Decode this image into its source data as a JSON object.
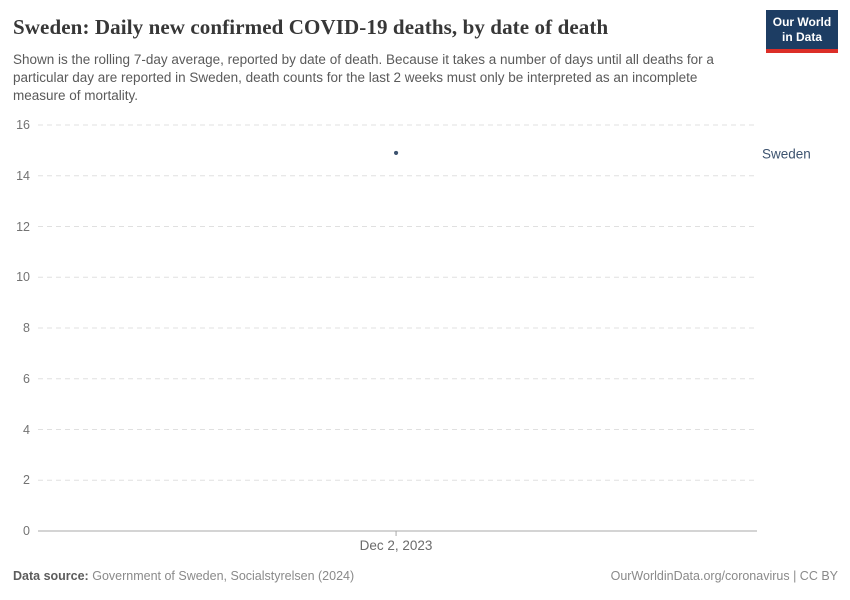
{
  "header": {
    "title": "Sweden: Daily new confirmed COVID-19 deaths, by date of death",
    "subtitle": "Shown is the rolling 7-day average, reported by date of death. Because it takes a number of days until all deaths for a particular day are reported in Sweden, death counts for the last 2 weeks must only be interpreted as an incomplete measure of mortality.",
    "logo": {
      "line1": "Our World",
      "line2": "in Data",
      "bg_color": "#1d3d63",
      "accent_color": "#dc2e28"
    }
  },
  "chart_data": {
    "type": "scatter",
    "title": "Sweden: Daily new confirmed COVID-19 deaths, by date of death",
    "series": [
      {
        "name": "Sweden",
        "color": "#3d536f",
        "points": [
          {
            "x_label": "Dec 2, 2023",
            "y": 14.9
          }
        ]
      }
    ],
    "yticks": [
      0,
      2,
      4,
      6,
      8,
      10,
      12,
      14,
      16
    ],
    "ylim": [
      0,
      16
    ],
    "x_tick": {
      "label": "Dec 2, 2023",
      "frac": 0.498
    },
    "grid": "horizontal-dashed",
    "grid_color": "#e0e0e0",
    "axis_color": "#a8a8a8",
    "legend_position": "right-of-plot"
  },
  "footer": {
    "source_label": "Data source:",
    "source_value": "Government of Sweden, Socialstyrelsen (2024)",
    "credit": "OurWorldinData.org/coronavirus | CC BY"
  }
}
